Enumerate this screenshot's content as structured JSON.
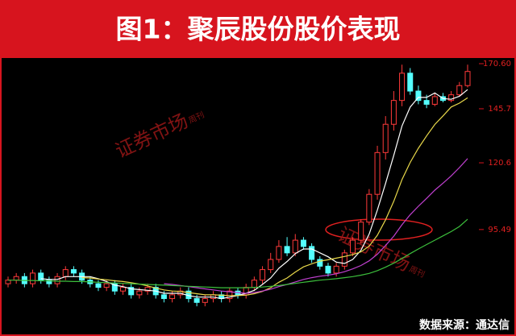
{
  "chart_data": {
    "type": "candlestick",
    "title": "图1：聚辰股份股价表现",
    "source": "数据来源：通达信",
    "watermark": {
      "main": "证券市场",
      "sub": "周刊"
    },
    "log_scale": true,
    "ylim": [
      71,
      174
    ],
    "yticks": [
      95.49,
      120.6,
      145.7,
      {
        "value": 170.6,
        "label": "170.60"
      }
    ],
    "up_color": "#ff3a3a",
    "down_color": "#54ffff",
    "open": [
      79,
      80,
      81,
      79,
      82,
      80,
      79,
      81,
      83,
      82,
      80,
      79,
      78,
      79,
      77,
      78,
      76,
      77,
      78,
      76,
      75,
      76,
      77,
      75,
      74,
      75,
      76,
      75,
      77,
      76,
      78,
      80,
      83,
      86,
      90,
      88,
      92,
      90,
      86,
      84,
      82,
      84,
      88,
      92,
      98,
      108,
      125,
      138,
      150,
      165,
      155,
      150,
      148,
      152,
      150,
      153,
      158
    ],
    "high": [
      81,
      82,
      82,
      83,
      83,
      81,
      82,
      84,
      84,
      83,
      81,
      80,
      80,
      80,
      79,
      79,
      78,
      79,
      79,
      77,
      77,
      78,
      78,
      76,
      76,
      77,
      77,
      78,
      78,
      79,
      81,
      84,
      88,
      92,
      93,
      94,
      93,
      91,
      87,
      85,
      85,
      89,
      93,
      99,
      110,
      128,
      142,
      155,
      170,
      168,
      158,
      153,
      154,
      154,
      155,
      160,
      170
    ],
    "low": [
      78,
      79,
      78,
      78,
      79,
      78,
      78,
      80,
      81,
      79,
      78,
      77,
      77,
      76,
      76,
      75,
      75,
      76,
      75,
      74,
      74,
      75,
      74,
      73,
      73,
      74,
      74,
      74,
      75,
      75,
      77,
      79,
      82,
      85,
      87,
      87,
      89,
      85,
      83,
      81,
      81,
      83,
      87,
      91,
      97,
      106,
      122,
      135,
      147,
      153,
      148,
      146,
      147,
      149,
      149,
      152,
      157
    ],
    "close": [
      80,
      81,
      79,
      82,
      80,
      79,
      81,
      83,
      82,
      80,
      79,
      78,
      79,
      77,
      78,
      76,
      77,
      78,
      76,
      75,
      76,
      77,
      75,
      74,
      75,
      76,
      75,
      77,
      76,
      78,
      80,
      83,
      86,
      90,
      88,
      92,
      90,
      86,
      84,
      82,
      84,
      88,
      92,
      98,
      108,
      125,
      138,
      150,
      165,
      155,
      150,
      148,
      152,
      150,
      153,
      158,
      166
    ],
    "lines": [
      {
        "color": "#ffffff",
        "values": [
          null,
          null,
          null,
          null,
          80.4,
          80.2,
          80.2,
          81,
          81,
          81,
          81,
          80.4,
          79.6,
          78.6,
          78.2,
          77.6,
          77.4,
          77.2,
          77,
          76.4,
          76.4,
          76.4,
          75.8,
          75.4,
          75.4,
          75.4,
          75,
          75.4,
          75.8,
          76.4,
          77.2,
          78.8,
          80.6,
          83.4,
          85.4,
          87.8,
          89.2,
          89.2,
          88,
          86.8,
          85.2,
          84.8,
          86,
          88.8,
          94,
          102.2,
          112.2,
          123.8,
          137.2,
          146.6,
          151.6,
          151.6,
          154,
          151,
          150.6,
          152.2,
          155.8
        ]
      },
      {
        "color": "#e8d84a",
        "values": [
          null,
          null,
          null,
          null,
          null,
          null,
          null,
          null,
          null,
          80.7,
          80.6,
          80.3,
          80.1,
          79.8,
          79.6,
          79.3,
          78.9,
          78.4,
          77.8,
          77.3,
          77,
          76.9,
          76.6,
          76.3,
          76,
          76,
          75.9,
          75.8,
          75.8,
          75.9,
          76.3,
          76.9,
          77.9,
          79.4,
          80.6,
          82.3,
          83.8,
          84.7,
          85.5,
          85.9,
          86.4,
          86.9,
          87.5,
          88.3,
          90.1,
          93.6,
          98.8,
          105.4,
          113.7,
          120.8,
          126.9,
          132.5,
          137.9,
          142.1,
          146.6,
          148.6,
          151.4
        ]
      },
      {
        "color": "#c040d0",
        "values": [
          null,
          null,
          null,
          null,
          null,
          null,
          null,
          null,
          null,
          null,
          null,
          null,
          null,
          null,
          null,
          null,
          null,
          null,
          null,
          79,
          78.8,
          78.5,
          78.2,
          77.9,
          77.6,
          77.3,
          77,
          76.8,
          76.6,
          76.4,
          76.6,
          77,
          77.5,
          78.2,
          78.8,
          79.5,
          80.2,
          80.7,
          81.1,
          81.4,
          81.8,
          82.4,
          83.2,
          84.2,
          85.6,
          87.6,
          90.3,
          93.3,
          97.1,
          100.6,
          103.6,
          106.5,
          109.6,
          112.3,
          115.2,
          118.6,
          122.4
        ]
      },
      {
        "color": "#3cbf3c",
        "values": [
          80,
          80,
          79.9,
          79.9,
          79.8,
          79.8,
          79.7,
          79.7,
          79.6,
          79.6,
          79.5,
          79.4,
          79.3,
          79.2,
          79.1,
          79,
          78.9,
          78.8,
          78.7,
          78.6,
          78.5,
          78.4,
          78.3,
          78.2,
          78.1,
          78,
          77.9,
          77.9,
          77.9,
          77.9,
          78,
          78.1,
          78.3,
          78.5,
          78.8,
          79.1,
          79.4,
          79.7,
          80,
          80.2,
          80.4,
          80.7,
          81,
          81.4,
          81.9,
          82.7,
          83.7,
          84.9,
          86.3,
          87.8,
          89.2,
          90.6,
          92,
          93.4,
          94.8,
          96.5,
          99
        ]
      }
    ]
  }
}
